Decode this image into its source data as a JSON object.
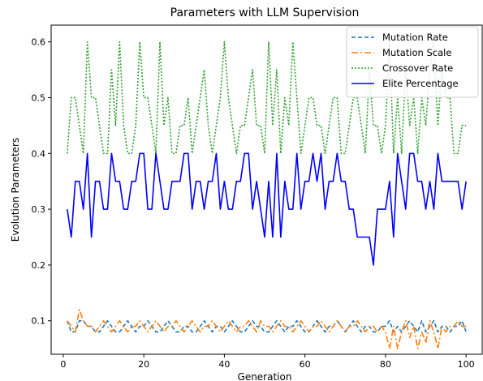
{
  "chart_data": {
    "type": "line",
    "title": "Parameters with LLM Supervision",
    "xlabel": "Generation",
    "ylabel": "Evolution Parameters",
    "xlim": [
      -3,
      104
    ],
    "ylim": [
      0.04,
      0.63
    ],
    "xticks": [
      0,
      20,
      40,
      60,
      80,
      100
    ],
    "yticks": [
      0.1,
      0.2,
      0.3,
      0.4,
      0.5,
      0.6
    ],
    "ytick_labels": [
      "0.1",
      "0.2",
      "0.3",
      "0.4",
      "0.5",
      "0.6"
    ],
    "grid": false,
    "legend_position": "upper right",
    "x": [
      1,
      2,
      3,
      4,
      5,
      6,
      7,
      8,
      9,
      10,
      11,
      12,
      13,
      14,
      15,
      16,
      17,
      18,
      19,
      20,
      21,
      22,
      23,
      24,
      25,
      26,
      27,
      28,
      29,
      30,
      31,
      32,
      33,
      34,
      35,
      36,
      37,
      38,
      39,
      40,
      41,
      42,
      43,
      44,
      45,
      46,
      47,
      48,
      49,
      50,
      51,
      52,
      53,
      54,
      55,
      56,
      57,
      58,
      59,
      60,
      61,
      62,
      63,
      64,
      65,
      66,
      67,
      68,
      69,
      70,
      71,
      72,
      73,
      74,
      75,
      76,
      77,
      78,
      79,
      80,
      81,
      82,
      83,
      84,
      85,
      86,
      87,
      88,
      89,
      90,
      91,
      92,
      93,
      94,
      95,
      96,
      97,
      98,
      99,
      100
    ],
    "series": [
      {
        "name": "Mutation Rate",
        "color": "#1f77b4",
        "dash": "5,3",
        "values": [
          0.1,
          0.08,
          0.08,
          0.1,
          0.1,
          0.09,
          0.09,
          0.08,
          0.08,
          0.09,
          0.1,
          0.09,
          0.08,
          0.08,
          0.09,
          0.1,
          0.09,
          0.08,
          0.09,
          0.09,
          0.1,
          0.09,
          0.08,
          0.08,
          0.09,
          0.1,
          0.09,
          0.08,
          0.08,
          0.09,
          0.09,
          0.08,
          0.08,
          0.09,
          0.1,
          0.09,
          0.08,
          0.09,
          0.09,
          0.08,
          0.09,
          0.1,
          0.09,
          0.08,
          0.08,
          0.09,
          0.1,
          0.09,
          0.09,
          0.08,
          0.08,
          0.09,
          0.1,
          0.09,
          0.08,
          0.09,
          0.09,
          0.1,
          0.09,
          0.08,
          0.08,
          0.09,
          0.1,
          0.09,
          0.08,
          0.09,
          0.09,
          0.1,
          0.09,
          0.08,
          0.09,
          0.1,
          0.09,
          0.08,
          0.09,
          0.09,
          0.08,
          0.08,
          0.09,
          0.09,
          0.1,
          0.08,
          0.09,
          0.08,
          0.09,
          0.1,
          0.09,
          0.08,
          0.1,
          0.08,
          0.09,
          0.1,
          0.08,
          0.09,
          0.09,
          0.08,
          0.09,
          0.09,
          0.1,
          0.08
        ]
      },
      {
        "name": "Mutation Scale",
        "color": "#ff7f0e",
        "dash": "8,3,2,3",
        "values": [
          0.1,
          0.09,
          0.08,
          0.12,
          0.1,
          0.09,
          0.09,
          0.08,
          0.09,
          0.1,
          0.09,
          0.08,
          0.09,
          0.1,
          0.09,
          0.08,
          0.09,
          0.09,
          0.1,
          0.09,
          0.08,
          0.09,
          0.1,
          0.09,
          0.08,
          0.09,
          0.09,
          0.1,
          0.09,
          0.08,
          0.09,
          0.1,
          0.09,
          0.08,
          0.09,
          0.09,
          0.1,
          0.09,
          0.08,
          0.09,
          0.1,
          0.09,
          0.08,
          0.09,
          0.09,
          0.1,
          0.09,
          0.08,
          0.1,
          0.09,
          0.09,
          0.08,
          0.09,
          0.1,
          0.09,
          0.09,
          0.08,
          0.09,
          0.1,
          0.09,
          0.08,
          0.09,
          0.09,
          0.1,
          0.09,
          0.08,
          0.09,
          0.1,
          0.09,
          0.08,
          0.09,
          0.09,
          0.1,
          0.09,
          0.08,
          0.09,
          0.09,
          0.08,
          0.09,
          0.08,
          0.05,
          0.09,
          0.05,
          0.08,
          0.1,
          0.07,
          0.09,
          0.05,
          0.08,
          0.06,
          0.1,
          0.08,
          0.05,
          0.09,
          0.08,
          0.09,
          0.09,
          0.1,
          0.09,
          0.09
        ]
      },
      {
        "name": "Crossover Rate",
        "color": "#2ca02c",
        "dash": "2,2",
        "values": [
          0.4,
          0.5,
          0.5,
          0.45,
          0.4,
          0.6,
          0.5,
          0.5,
          0.45,
          0.4,
          0.4,
          0.55,
          0.45,
          0.6,
          0.45,
          0.4,
          0.4,
          0.45,
          0.6,
          0.5,
          0.5,
          0.45,
          0.4,
          0.6,
          0.45,
          0.5,
          0.4,
          0.4,
          0.45,
          0.45,
          0.5,
          0.4,
          0.45,
          0.5,
          0.55,
          0.45,
          0.4,
          0.45,
          0.5,
          0.6,
          0.5,
          0.45,
          0.4,
          0.45,
          0.45,
          0.5,
          0.55,
          0.45,
          0.45,
          0.4,
          0.6,
          0.45,
          0.55,
          0.4,
          0.5,
          0.45,
          0.6,
          0.5,
          0.4,
          0.45,
          0.5,
          0.5,
          0.45,
          0.45,
          0.4,
          0.45,
          0.5,
          0.5,
          0.4,
          0.4,
          0.45,
          0.5,
          0.5,
          0.45,
          0.4,
          0.55,
          0.45,
          0.45,
          0.4,
          0.45,
          0.6,
          0.4,
          0.5,
          0.4,
          0.55,
          0.45,
          0.5,
          0.4,
          0.5,
          0.45,
          0.55,
          0.6,
          0.45,
          0.55,
          0.5,
          0.5,
          0.4,
          0.4,
          0.45,
          0.45
        ]
      },
      {
        "name": "Elite Percentage",
        "color": "#0000ff",
        "dash": "",
        "values": [
          0.3,
          0.25,
          0.35,
          0.35,
          0.3,
          0.4,
          0.25,
          0.35,
          0.35,
          0.3,
          0.3,
          0.4,
          0.35,
          0.35,
          0.3,
          0.3,
          0.35,
          0.35,
          0.4,
          0.4,
          0.3,
          0.3,
          0.4,
          0.35,
          0.3,
          0.3,
          0.35,
          0.35,
          0.35,
          0.4,
          0.4,
          0.3,
          0.35,
          0.35,
          0.3,
          0.35,
          0.35,
          0.4,
          0.3,
          0.35,
          0.3,
          0.3,
          0.35,
          0.35,
          0.4,
          0.4,
          0.3,
          0.35,
          0.3,
          0.25,
          0.35,
          0.25,
          0.4,
          0.25,
          0.35,
          0.3,
          0.3,
          0.4,
          0.3,
          0.35,
          0.35,
          0.4,
          0.35,
          0.4,
          0.3,
          0.35,
          0.35,
          0.4,
          0.35,
          0.35,
          0.3,
          0.3,
          0.25,
          0.25,
          0.25,
          0.25,
          0.2,
          0.3,
          0.3,
          0.3,
          0.35,
          0.25,
          0.4,
          0.35,
          0.3,
          0.4,
          0.4,
          0.35,
          0.35,
          0.3,
          0.35,
          0.3,
          0.4,
          0.35,
          0.35,
          0.35,
          0.35,
          0.35,
          0.3,
          0.35
        ]
      }
    ]
  }
}
